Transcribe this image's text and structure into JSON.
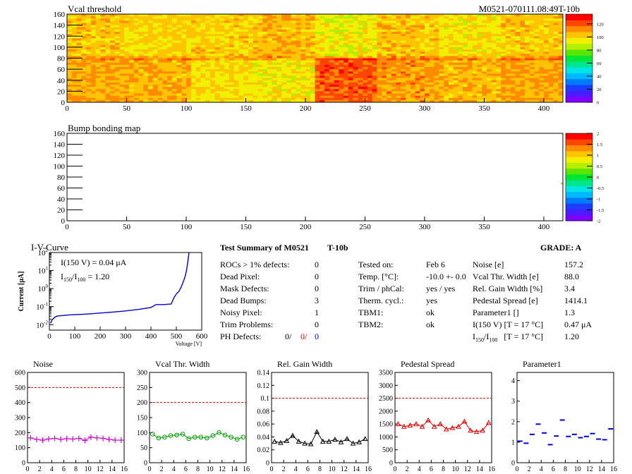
{
  "header": {
    "vcal_title": "Vcal threshold",
    "module_id": "M0521-070111.08:49T-10b",
    "bump_title": "Bump bonding map",
    "iv_title": "I-V-Curve"
  },
  "colors": {
    "noise": "#d400d4",
    "vcal_width": "#00a000",
    "gain_width": "#000000",
    "pedestal": "#e00000",
    "parameter1": "#0000e0",
    "threshold_line": "#d00000",
    "iv_curve": "#0000d0"
  },
  "map_palette": [
    "#7f00ff",
    "#4b1cff",
    "#1c3cff",
    "#007bff",
    "#00b8ff",
    "#00e6e6",
    "#00e68c",
    "#00e632",
    "#5ae600",
    "#b4ee00",
    "#f0f000",
    "#ffc400",
    "#ff8c00",
    "#ff4600",
    "#ff0000"
  ],
  "iv_annot": {
    "line1": "I(150 V) = 0.04 μA",
    "line2_pre": "I",
    "line2_sub1": "150",
    "line2_mid": "/I",
    "line2_sub2": "100",
    "line2_post": " =  1.20"
  },
  "summary": {
    "title": "Test Summary of M0521",
    "test": "T-10b",
    "grade": "GRADE:  A",
    "left_rows": [
      {
        "label": "ROCs > 1% defects:",
        "value": "0"
      },
      {
        "label": "Dead Pixel:",
        "value": "0"
      },
      {
        "label": "Mask Defects:",
        "value": "0"
      },
      {
        "label": "Dead Bumps:",
        "value": "3"
      },
      {
        "label": "Noisy Pixel:",
        "value": "1"
      },
      {
        "label": "Trim Problems:",
        "value": "0"
      }
    ],
    "ph_label": "PH Defects:",
    "ph_values": [
      "0/",
      "0/",
      "0"
    ],
    "mid_rows": [
      {
        "label": "Tested on:",
        "value": "Feb 6"
      },
      {
        "label": "Temp. [°C]:",
        "value": "-10.0 +- 0.0"
      },
      {
        "label": "Trim / phCal:",
        "value": "yes / yes"
      },
      {
        "label": "Therm. cycl.:",
        "value": "yes"
      },
      {
        "label": "TBM1:",
        "value": "ok"
      },
      {
        "label": "TBM2:",
        "value": "ok"
      }
    ],
    "right_rows": [
      {
        "label": "Noise [e]",
        "value": "157.2"
      },
      {
        "label": "Vcal Thr. Width [e]",
        "value": "88.0"
      },
      {
        "label": "Rel. Gain Width [%]",
        "value": "3.4"
      },
      {
        "label": "Pedestal Spread [e]",
        "value": "1414.1"
      },
      {
        "label": "Parameter1 []",
        "value": "1.3"
      },
      {
        "label": "I(150 V) [T = 17 °C]",
        "value": "0.47 μA"
      }
    ],
    "ratio_row": {
      "pre": "I",
      "sub1": "150",
      "mid": "/I",
      "sub2": "100",
      "post": "   [T = 17 °C]",
      "value": "1.20"
    }
  },
  "chart_data": [
    {
      "type": "heatmap",
      "title": "Vcal threshold",
      "xlim": [
        0,
        416
      ],
      "ylim": [
        0,
        160
      ],
      "x_ticks": [
        0,
        50,
        100,
        150,
        200,
        250,
        300,
        350,
        400
      ],
      "y_ticks": [
        0,
        20,
        40,
        60,
        80,
        100,
        120,
        140,
        160
      ],
      "z_ticks": [
        0,
        20,
        40,
        60,
        80,
        100,
        120
      ],
      "zlim": [
        0,
        135
      ],
      "roc_mean_levels": {
        "top_row": [
          103,
          100,
          101,
          105,
          95,
          103,
          97,
          102
        ],
        "bottom_row": [
          107,
          106,
          98,
          96,
          120,
          110,
          105,
          108
        ]
      }
    },
    {
      "type": "heatmap",
      "title": "Bump bonding map",
      "xlim": [
        0,
        416
      ],
      "ylim": [
        0,
        160
      ],
      "x_ticks": [
        0,
        50,
        100,
        150,
        200,
        250,
        300,
        350,
        400
      ],
      "y_ticks": [
        0,
        20,
        40,
        60,
        80,
        100,
        120,
        140,
        160
      ],
      "z_ticks": [
        -2,
        -1.5,
        -1,
        -0.5,
        0,
        0.5,
        1,
        1.5,
        2
      ],
      "zlim": [
        -2,
        2
      ],
      "points": [
        {
          "x": 415,
          "y": 68,
          "z": 0.3
        }
      ]
    },
    {
      "type": "line",
      "title": "I-V-Curve",
      "xlabel": "Voltage [V]",
      "ylabel": "Current [μA]",
      "xlim": [
        0,
        600
      ],
      "ylim": [
        0.005,
        100
      ],
      "log_y": true,
      "x_ticks": [
        0,
        100,
        200,
        300,
        400,
        500,
        600
      ],
      "x": [
        5,
        10,
        20,
        30,
        50,
        80,
        120,
        160,
        200,
        250,
        300,
        350,
        400,
        420,
        450,
        480,
        490,
        500,
        510,
        520,
        530,
        535,
        540,
        545,
        550
      ],
      "y": [
        0.012,
        0.018,
        0.025,
        0.03,
        0.032,
        0.035,
        0.037,
        0.04,
        0.044,
        0.05,
        0.058,
        0.07,
        0.09,
        0.13,
        0.13,
        0.14,
        0.3,
        0.5,
        0.7,
        1.3,
        3.0,
        5.0,
        10.0,
        30.0,
        100.0
      ]
    },
    {
      "type": "scatter",
      "title": "Noise",
      "color_key": "noise",
      "marker": "cross",
      "xlim": [
        0,
        16
      ],
      "ylim": [
        0,
        600
      ],
      "y_ticks": [
        0,
        100,
        200,
        300,
        400,
        500,
        600
      ],
      "threshold": 500,
      "x": [
        0.5,
        1.5,
        2.5,
        3.5,
        4.5,
        5.5,
        6.5,
        7.5,
        8.5,
        9.5,
        10.5,
        11.5,
        12.5,
        13.5,
        14.5,
        15.5
      ],
      "y": [
        165,
        155,
        150,
        158,
        162,
        155,
        160,
        157,
        162,
        148,
        170,
        165,
        162,
        155,
        150,
        150
      ]
    },
    {
      "type": "scatter",
      "title": "Vcal Thr. Width",
      "color_key": "vcal_width",
      "marker": "circle",
      "xlim": [
        0,
        16
      ],
      "ylim": [
        0,
        300
      ],
      "y_ticks": [
        0,
        50,
        100,
        150,
        200,
        250,
        300
      ],
      "threshold": 200,
      "x": [
        0.5,
        1.5,
        2.5,
        3.5,
        4.5,
        5.5,
        6.5,
        7.5,
        8.5,
        9.5,
        10.5,
        11.5,
        12.5,
        13.5,
        14.5,
        15.5
      ],
      "y": [
        95,
        82,
        85,
        90,
        92,
        95,
        80,
        85,
        85,
        82,
        90,
        100,
        92,
        85,
        78,
        85
      ]
    },
    {
      "type": "scatter",
      "title": "Rel. Gain Width",
      "color_key": "gain_width",
      "marker": "triangle",
      "xlim": [
        0,
        16
      ],
      "ylim": [
        0,
        0.14
      ],
      "y_ticks": [
        0,
        0.02,
        0.04,
        0.06,
        0.08,
        0.1,
        0.12,
        0.14
      ],
      "threshold": 0.1,
      "x": [
        0.5,
        1.5,
        2.5,
        3.5,
        4.5,
        5.5,
        6.5,
        7.5,
        8.5,
        9.5,
        10.5,
        11.5,
        12.5,
        13.5,
        14.5,
        15.5
      ],
      "y": [
        0.033,
        0.031,
        0.034,
        0.042,
        0.033,
        0.03,
        0.029,
        0.048,
        0.033,
        0.033,
        0.036,
        0.032,
        0.037,
        0.03,
        0.032,
        0.037
      ]
    },
    {
      "type": "scatter",
      "title": "Pedestal Spread",
      "color_key": "pedestal",
      "marker": "triangle",
      "xlim": [
        0,
        16
      ],
      "ylim": [
        0,
        3500
      ],
      "y_ticks": [
        0,
        500,
        1000,
        1500,
        2000,
        2500,
        3000,
        3500
      ],
      "threshold": 2500,
      "x": [
        0.5,
        1.5,
        2.5,
        3.5,
        4.5,
        5.5,
        6.5,
        7.5,
        8.5,
        9.5,
        10.5,
        11.5,
        12.5,
        13.5,
        14.5,
        15.5
      ],
      "y": [
        1500,
        1400,
        1450,
        1500,
        1400,
        1650,
        1400,
        1500,
        1300,
        1350,
        1400,
        1600,
        1250,
        1200,
        1250,
        1550
      ]
    },
    {
      "type": "scatter",
      "title": "Parameter1",
      "color_key": "parameter1",
      "marker": "hline",
      "xlim": [
        0,
        16
      ],
      "ylim": [
        0,
        4.4
      ],
      "y_ticks": [
        0,
        1,
        2,
        3,
        4
      ],
      "threshold": null,
      "x": [
        0.5,
        1.5,
        2.5,
        3.5,
        4.5,
        5.5,
        6.5,
        7.5,
        8.5,
        9.5,
        10.5,
        11.5,
        12.5,
        13.5,
        14.5,
        15.5
      ],
      "y": [
        1.05,
        0.95,
        1.38,
        1.88,
        1.45,
        0.88,
        1.3,
        2.08,
        1.28,
        1.38,
        1.22,
        1.28,
        1.42,
        1.15,
        1.12,
        1.65
      ]
    }
  ]
}
